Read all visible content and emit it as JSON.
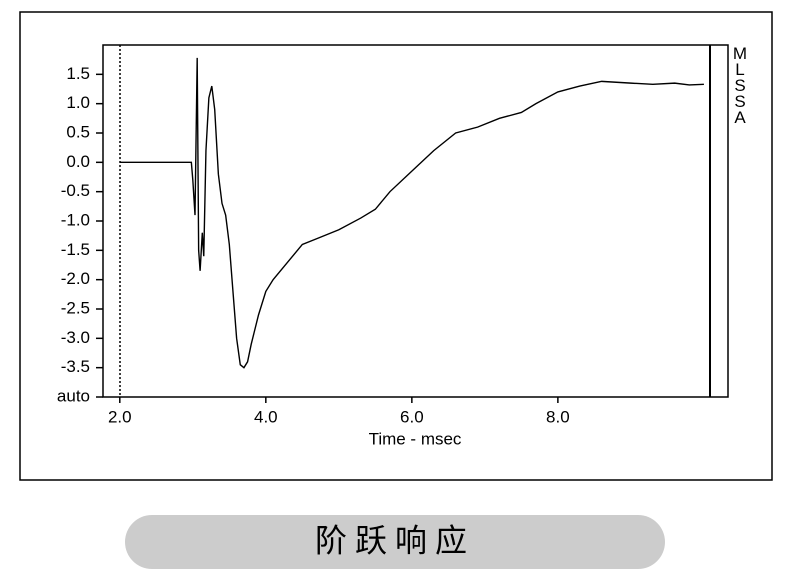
{
  "chart_data": {
    "type": "line",
    "x_label": "Time - msec",
    "annotation": "MLSSA",
    "button": "阶跃响应",
    "xlim": [
      1.77,
      10.33
    ],
    "ylim": [
      -4,
      2
    ],
    "xticks": [
      {
        "value": 2,
        "label": "2.0"
      },
      {
        "value": 4,
        "label": "4.0"
      },
      {
        "value": 6,
        "label": "6.0"
      },
      {
        "value": 8,
        "label": "8.0"
      }
    ],
    "yticks": [
      {
        "value": -4,
        "label": "auto"
      },
      -3.5,
      {
        "value": -3,
        "label": "-3.0"
      },
      -2.5,
      {
        "value": -2,
        "label": "-2.0"
      },
      -1.5,
      {
        "value": -1,
        "label": "-1.0"
      },
      -0.5,
      {
        "value": 0,
        "label": "0.0"
      },
      0.5,
      {
        "value": 1,
        "label": "1.0"
      },
      1.5
    ],
    "color": "#000000",
    "x": [
      2.0,
      2.98,
      3.0,
      3.03,
      3.06,
      3.08,
      3.1,
      3.13,
      3.15,
      3.18,
      3.22,
      3.26,
      3.3,
      3.35,
      3.4,
      3.45,
      3.5,
      3.55,
      3.6,
      3.65,
      3.7,
      3.75,
      3.8,
      3.9,
      4.0,
      4.1,
      4.3,
      4.5,
      4.7,
      5.0,
      5.3,
      5.5,
      5.7,
      6.0,
      6.3,
      6.6,
      6.9,
      7.2,
      7.5,
      7.7,
      8.0,
      8.3,
      8.6,
      9.0,
      9.3,
      9.6,
      9.8,
      10.0
    ],
    "values": [
      0,
      0,
      -0.3,
      -0.9,
      1.78,
      -1.5,
      -1.85,
      -1.2,
      -1.6,
      0.2,
      1.1,
      1.3,
      0.9,
      -0.2,
      -0.7,
      -0.9,
      -1.4,
      -2.2,
      -3.0,
      -3.45,
      -3.5,
      -3.4,
      -3.1,
      -2.6,
      -2.2,
      -2.0,
      -1.7,
      -1.4,
      -1.3,
      -1.15,
      -0.95,
      -0.8,
      -0.5,
      -0.15,
      0.2,
      0.5,
      0.6,
      0.75,
      0.85,
      1.0,
      1.2,
      1.3,
      1.38,
      1.35,
      1.33,
      1.35,
      1.32,
      1.33
    ]
  }
}
